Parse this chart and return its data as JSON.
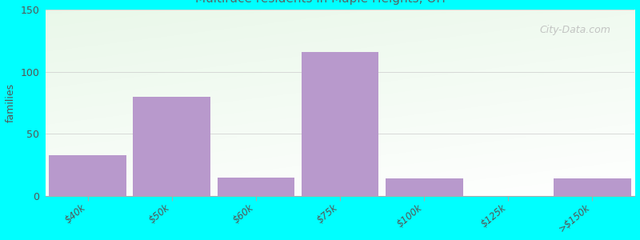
{
  "ylabel": "families",
  "background_color": "#00FFFF",
  "plot_bg_top_left": "#ddeedd",
  "plot_bg_bottom_right": "#f8faf8",
  "bar_color": "#b899cc",
  "categories": [
    "$40k",
    "$50k",
    "$60k",
    "$75k",
    "$100k",
    "$125k",
    ">$150k"
  ],
  "values": [
    33,
    80,
    15,
    116,
    14,
    0,
    14
  ],
  "ylim": [
    0,
    150
  ],
  "yticks": [
    0,
    50,
    100,
    150
  ],
  "title_fontsize": 15,
  "subtitle_fontsize": 11,
  "subtitle_color": "#556666",
  "watermark": "City-Data.com",
  "bar_width": 0.92
}
